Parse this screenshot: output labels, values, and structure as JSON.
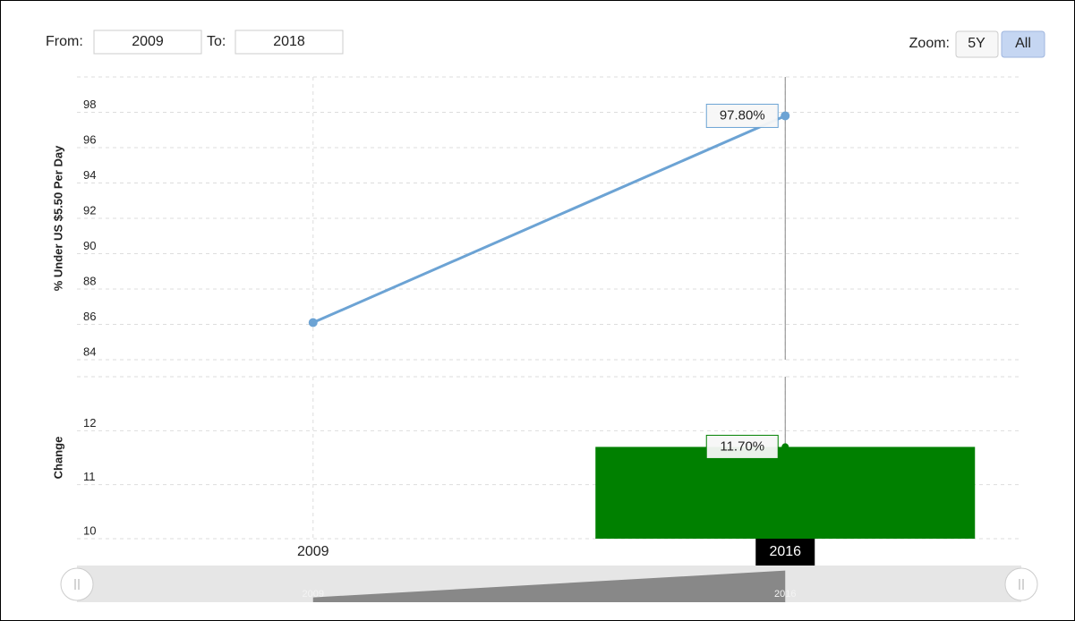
{
  "controls": {
    "from_label": "From:",
    "from": "2009",
    "to_label": "To:",
    "to": "2018",
    "zoom_label": "Zoom:",
    "zoom_options": [
      "5Y",
      "All"
    ]
  },
  "chart_data": [
    {
      "type": "line",
      "ylabel": "% Under US $5.50 Per Day",
      "x": [
        2009,
        2016
      ],
      "values": [
        86.1,
        97.8
      ],
      "value_labels": [
        null,
        "97.80%"
      ],
      "color": "#6ca3d4",
      "xlim": [
        2005.5,
        2019.5
      ],
      "xticks": [
        2009,
        2016
      ],
      "ylim": [
        84,
        100
      ],
      "yticks": [
        84,
        86,
        88,
        90,
        92,
        94,
        96,
        98
      ],
      "grid": true
    },
    {
      "type": "bar",
      "ylabel": "Change",
      "x": [
        2016
      ],
      "values": [
        11.7
      ],
      "value_labels": [
        "11.70%"
      ],
      "color": "#008000",
      "xlim": [
        2005.5,
        2019.5
      ],
      "xticks": [
        2009,
        2016
      ],
      "ylim": [
        10,
        13
      ],
      "yticks": [
        10,
        11,
        12
      ],
      "grid": true
    }
  ]
}
